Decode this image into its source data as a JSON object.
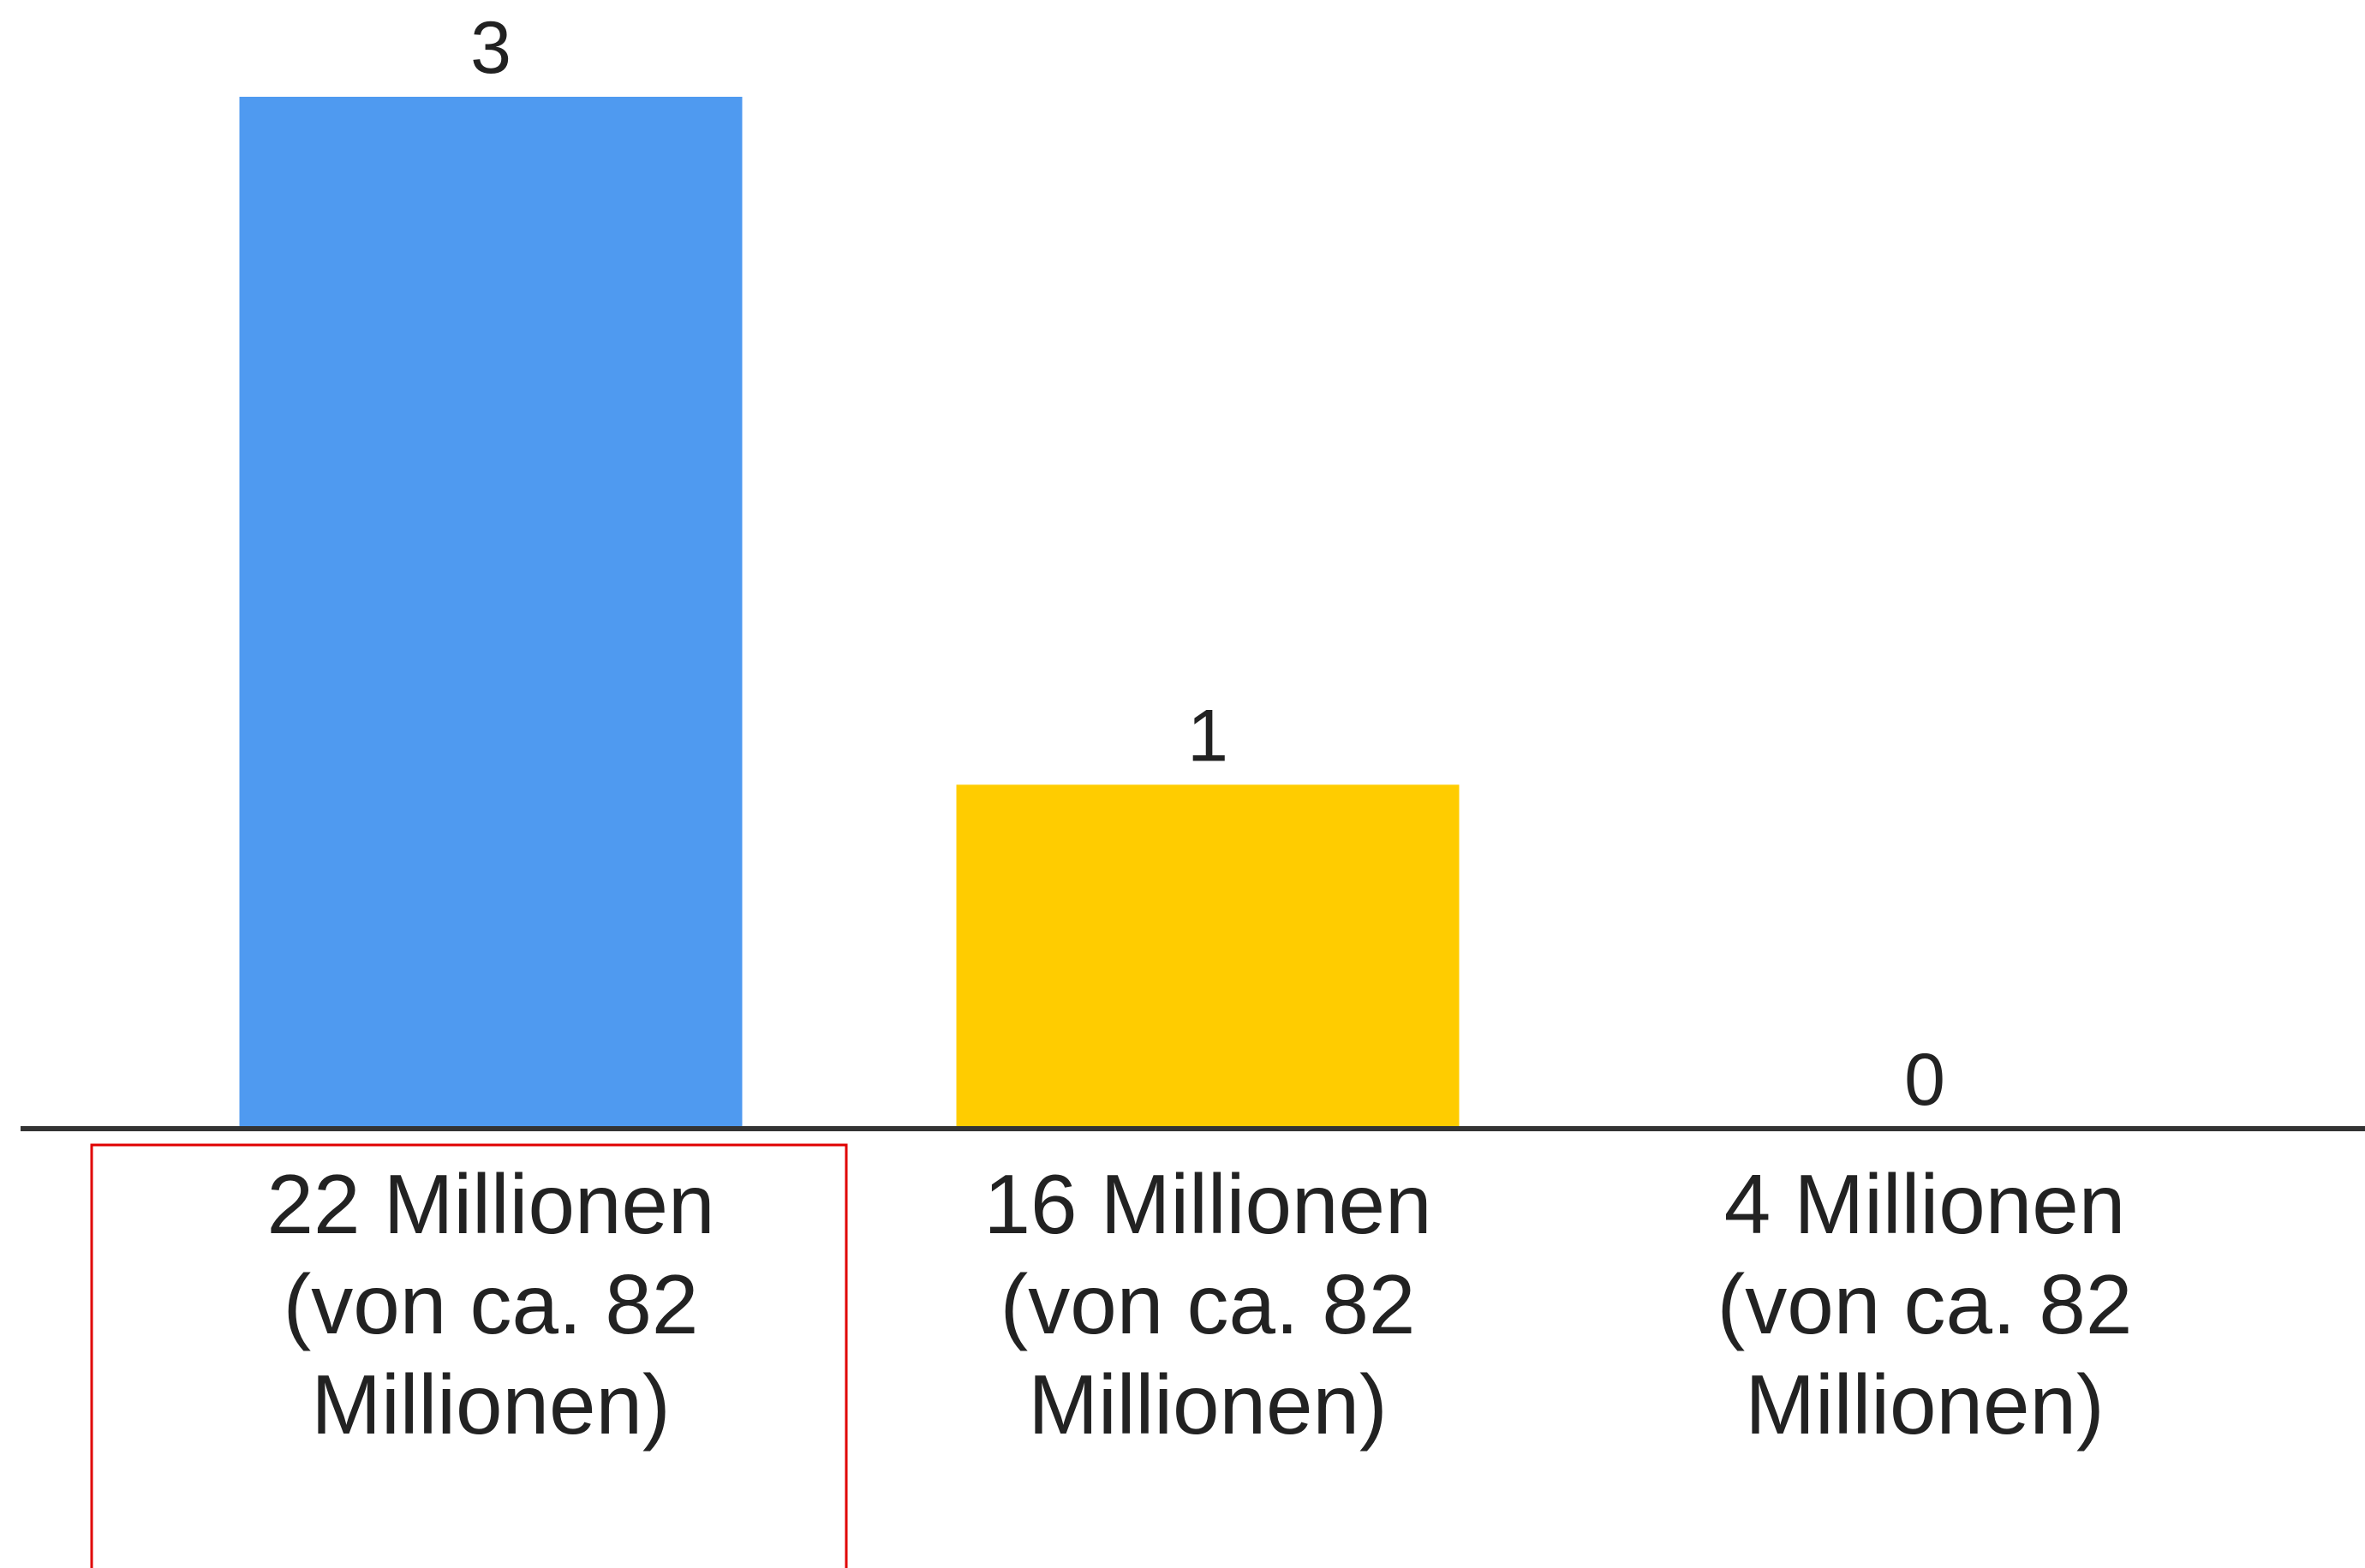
{
  "chart_data": {
    "type": "bar",
    "categories": [
      [
        "22 Millionen",
        "(von ca. 82",
        "Millionen)"
      ],
      [
        "16 Millionen",
        "(von ca. 82",
        "Millionen)"
      ],
      [
        "4 Millionen",
        "(von ca. 82",
        "Millionen)"
      ]
    ],
    "values": [
      3,
      1,
      0
    ],
    "data_labels": [
      "3",
      "1",
      "0"
    ],
    "colors": [
      "#4f9af0",
      "#ffcc00",
      "#ffcc00"
    ],
    "axis_color": "#333333",
    "highlight_color": "#e00000",
    "highlighted_category_index": 0,
    "ylim": [
      0,
      3
    ],
    "grid": false,
    "legend": "none"
  }
}
